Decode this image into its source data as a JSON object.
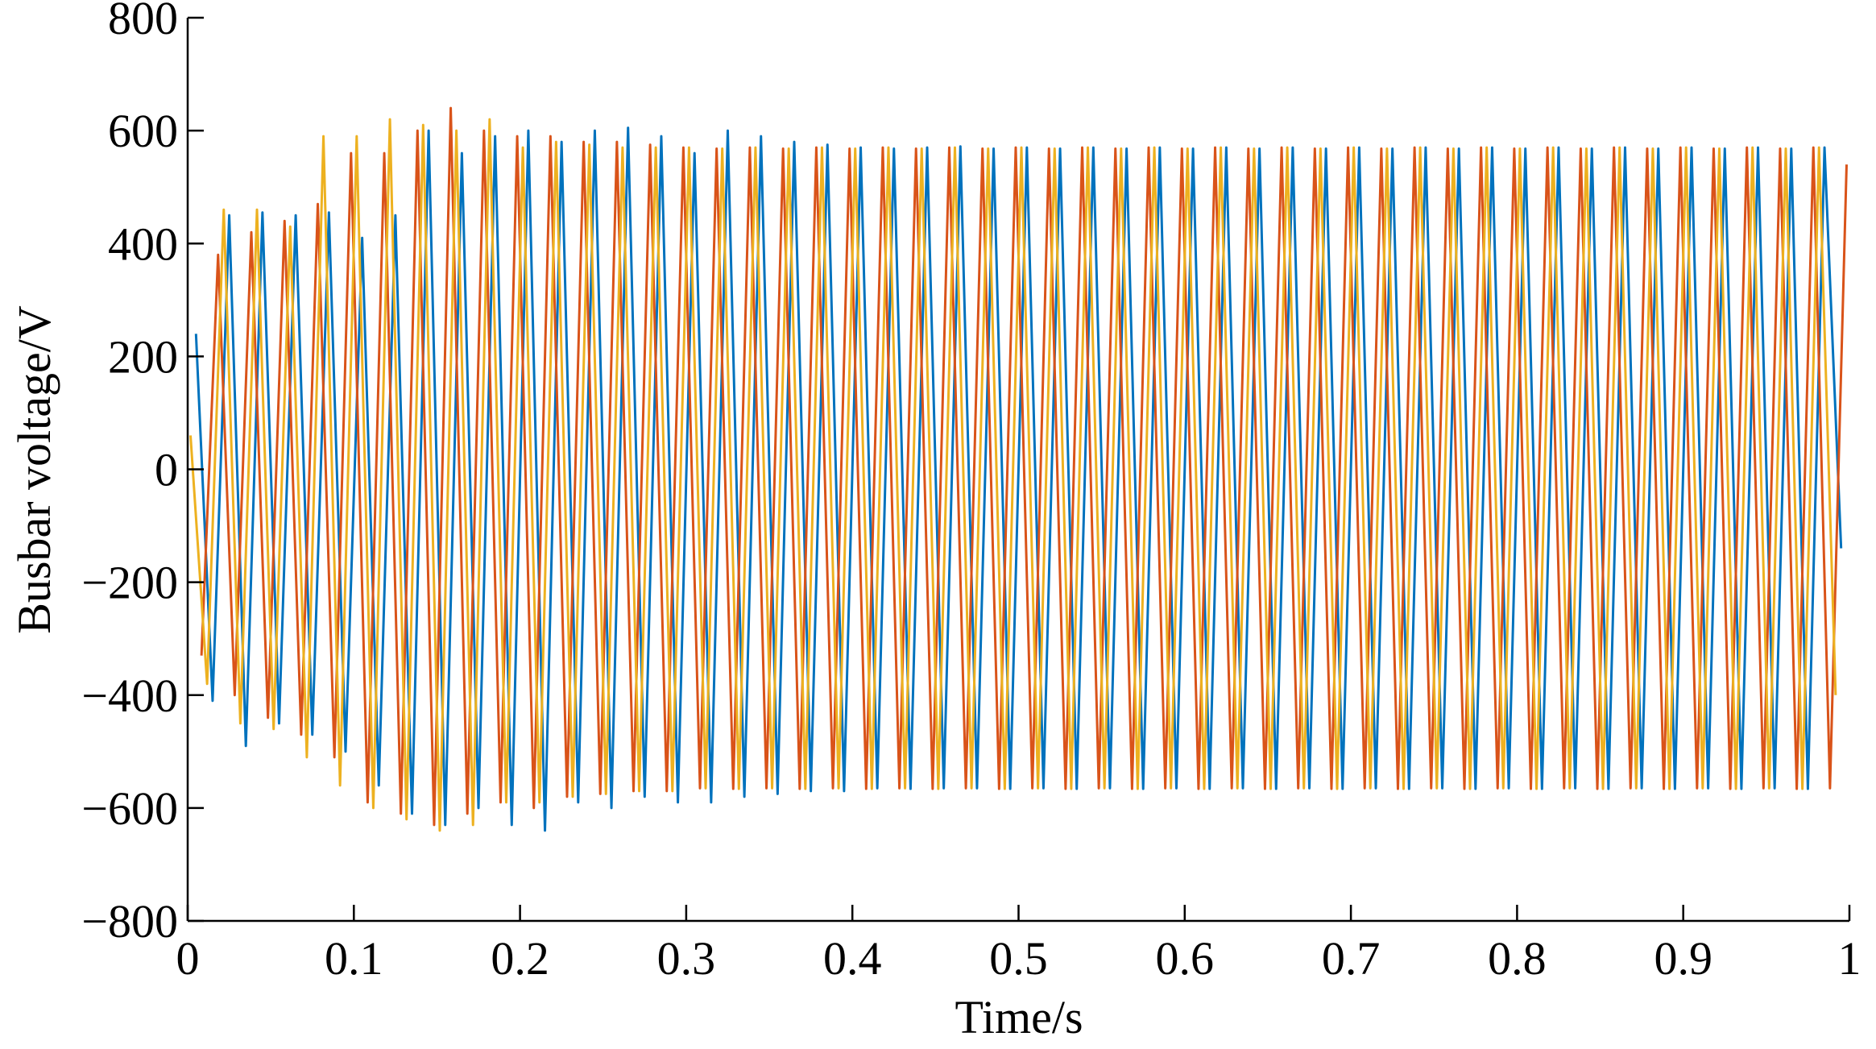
{
  "chart_data": {
    "type": "line",
    "xlabel": "Time/s",
    "ylabel": "Busbar voltage/V",
    "xlim": [
      0,
      1
    ],
    "xticks": [
      0,
      0.1,
      0.2,
      0.3,
      0.4,
      0.5,
      0.6,
      0.7,
      0.8,
      0.9,
      1
    ],
    "ylim": [
      -800,
      800
    ],
    "yticks": [
      {
        "value": -800,
        "label": "−800"
      },
      {
        "value": -600,
        "label": "−600"
      },
      {
        "value": -400,
        "label": "−400"
      },
      {
        "value": -200,
        "label": "−200"
      },
      0,
      200,
      400,
      600,
      800
    ],
    "series": [
      {
        "color": "#0072BD",
        "x": [
          0.005,
          0.015,
          0.025,
          0.035,
          0.045,
          0.055,
          0.065,
          0.075,
          0.085,
          0.095,
          0.105,
          0.115,
          0.125,
          0.135,
          0.145,
          0.155,
          0.165,
          0.175,
          0.185,
          0.195,
          0.205,
          0.215,
          0.225,
          0.235,
          0.245,
          0.255,
          0.265,
          0.275,
          0.285,
          0.295,
          0.305,
          0.315,
          0.325,
          0.335,
          0.345,
          0.355,
          0.365,
          0.375,
          0.385,
          0.395,
          0.405,
          0.415,
          0.425,
          0.435,
          0.445,
          0.455,
          0.465,
          0.475,
          0.485,
          0.495,
          0.505,
          0.515,
          0.525,
          0.535,
          0.545,
          0.555,
          0.565,
          0.575,
          0.585,
          0.595,
          0.605,
          0.615,
          0.625,
          0.635,
          0.645,
          0.655,
          0.665,
          0.675,
          0.685,
          0.695,
          0.705,
          0.715,
          0.725,
          0.735,
          0.745,
          0.755,
          0.765,
          0.775,
          0.785,
          0.795,
          0.805,
          0.815,
          0.825,
          0.835,
          0.845,
          0.855,
          0.865,
          0.875,
          0.885,
          0.895,
          0.905,
          0.915,
          0.925,
          0.935,
          0.945,
          0.955,
          0.965,
          0.975,
          0.985,
          0.995
        ],
        "values": [
          240,
          -410,
          450,
          -490,
          455,
          -450,
          450,
          -470,
          455,
          -500,
          410,
          -560,
          450,
          -610,
          600,
          -630,
          560,
          -600,
          590,
          -630,
          600,
          -640,
          580,
          -590,
          600,
          -600,
          605,
          -580,
          590,
          -590,
          560,
          -590,
          600,
          -580,
          590,
          -575,
          580,
          -570,
          575,
          -570,
          570,
          -565,
          568,
          -566,
          570,
          -565,
          572,
          -565,
          568,
          -566,
          570,
          -565,
          568,
          -566,
          570,
          -565,
          568,
          -566,
          570,
          -565,
          568,
          -566,
          570,
          -565,
          568,
          -566,
          570,
          -565,
          568,
          -566,
          570,
          -565,
          568,
          -566,
          570,
          -565,
          568,
          -566,
          570,
          -565,
          568,
          -566,
          570,
          -565,
          568,
          -566,
          570,
          -565,
          568,
          -566,
          570,
          -565,
          568,
          -566,
          570,
          -565,
          568,
          -566,
          570,
          -140
        ]
      },
      {
        "color": "#D95319",
        "x": [
          0.0083,
          0.0183,
          0.0283,
          0.0383,
          0.0483,
          0.0583,
          0.0683,
          0.0783,
          0.0883,
          0.0983,
          0.1083,
          0.1183,
          0.1283,
          0.1383,
          0.1483,
          0.1583,
          0.1683,
          0.1783,
          0.1883,
          0.1983,
          0.2083,
          0.2183,
          0.2283,
          0.2383,
          0.2483,
          0.2583,
          0.2683,
          0.2783,
          0.2883,
          0.2983,
          0.3083,
          0.3183,
          0.3283,
          0.3383,
          0.3483,
          0.3583,
          0.3683,
          0.3783,
          0.3883,
          0.3983,
          0.4083,
          0.4183,
          0.4283,
          0.4383,
          0.4483,
          0.4583,
          0.4683,
          0.4783,
          0.4883,
          0.4983,
          0.5083,
          0.5183,
          0.5283,
          0.5383,
          0.5483,
          0.5583,
          0.5683,
          0.5783,
          0.5883,
          0.5983,
          0.6083,
          0.6183,
          0.6283,
          0.6383,
          0.6483,
          0.6583,
          0.6683,
          0.6783,
          0.6883,
          0.6983,
          0.7083,
          0.7183,
          0.7283,
          0.7383,
          0.7483,
          0.7583,
          0.7683,
          0.7783,
          0.7883,
          0.7983,
          0.8083,
          0.8183,
          0.8283,
          0.8383,
          0.8483,
          0.8583,
          0.8683,
          0.8783,
          0.8883,
          0.8983,
          0.9083,
          0.9183,
          0.9283,
          0.9383,
          0.9483,
          0.9583,
          0.9683,
          0.9783,
          0.9883,
          0.9983
        ],
        "values": [
          -330,
          380,
          -400,
          420,
          -440,
          440,
          -470,
          470,
          -510,
          560,
          -590,
          560,
          -610,
          600,
          -630,
          640,
          -610,
          600,
          -590,
          590,
          -600,
          590,
          -580,
          580,
          -575,
          580,
          -570,
          575,
          -570,
          570,
          -565,
          568,
          -566,
          570,
          -565,
          568,
          -566,
          570,
          -565,
          568,
          -566,
          570,
          -565,
          568,
          -566,
          570,
          -565,
          568,
          -566,
          570,
          -565,
          568,
          -566,
          570,
          -565,
          568,
          -566,
          570,
          -565,
          568,
          -566,
          570,
          -565,
          568,
          -566,
          570,
          -565,
          568,
          -566,
          570,
          -565,
          568,
          -566,
          570,
          -565,
          568,
          -566,
          570,
          -565,
          568,
          -566,
          570,
          -565,
          568,
          -566,
          570,
          -565,
          568,
          -566,
          570,
          -565,
          568,
          -566,
          570,
          -565,
          568,
          -566,
          570,
          -565,
          540
        ]
      },
      {
        "color": "#EDB120",
        "x": [
          0.0017,
          0.0117,
          0.0217,
          0.0317,
          0.0417,
          0.0517,
          0.0617,
          0.0717,
          0.0817,
          0.0917,
          0.1017,
          0.1117,
          0.1217,
          0.1317,
          0.1417,
          0.1517,
          0.1617,
          0.1717,
          0.1817,
          0.1917,
          0.2017,
          0.2117,
          0.2217,
          0.2317,
          0.2417,
          0.2517,
          0.2617,
          0.2717,
          0.2817,
          0.2917,
          0.3017,
          0.3117,
          0.3217,
          0.3317,
          0.3417,
          0.3517,
          0.3617,
          0.3717,
          0.3817,
          0.3917,
          0.4017,
          0.4117,
          0.4217,
          0.4317,
          0.4417,
          0.4517,
          0.4617,
          0.4717,
          0.4817,
          0.4917,
          0.5017,
          0.5117,
          0.5217,
          0.5317,
          0.5417,
          0.5517,
          0.5617,
          0.5717,
          0.5817,
          0.5917,
          0.6017,
          0.6117,
          0.6217,
          0.6317,
          0.6417,
          0.6517,
          0.6617,
          0.6717,
          0.6817,
          0.6917,
          0.7017,
          0.7117,
          0.7217,
          0.7317,
          0.7417,
          0.7517,
          0.7617,
          0.7717,
          0.7817,
          0.7917,
          0.8017,
          0.8117,
          0.8217,
          0.8317,
          0.8417,
          0.8517,
          0.8617,
          0.8717,
          0.8817,
          0.8917,
          0.9017,
          0.9117,
          0.9217,
          0.9317,
          0.9417,
          0.9517,
          0.9617,
          0.9717,
          0.9817,
          0.9917
        ],
        "values": [
          60,
          -380,
          460,
          -450,
          460,
          -460,
          430,
          -510,
          590,
          -560,
          590,
          -600,
          620,
          -620,
          610,
          -640,
          600,
          -630,
          620,
          -590,
          570,
          -590,
          580,
          -580,
          575,
          -575,
          570,
          -570,
          570,
          -570,
          570,
          -565,
          568,
          -566,
          570,
          -565,
          568,
          -566,
          570,
          -565,
          568,
          -566,
          570,
          -565,
          568,
          -566,
          570,
          -565,
          568,
          -566,
          570,
          -565,
          568,
          -566,
          570,
          -565,
          568,
          -566,
          570,
          -565,
          568,
          -566,
          570,
          -565,
          568,
          -566,
          570,
          -565,
          568,
          -566,
          570,
          -565,
          568,
          -566,
          570,
          -565,
          568,
          -566,
          570,
          -565,
          568,
          -566,
          570,
          -565,
          568,
          -566,
          570,
          -565,
          568,
          -566,
          570,
          -565,
          568,
          -566,
          570,
          -565,
          568,
          -566,
          570,
          -400
        ]
      }
    ]
  }
}
